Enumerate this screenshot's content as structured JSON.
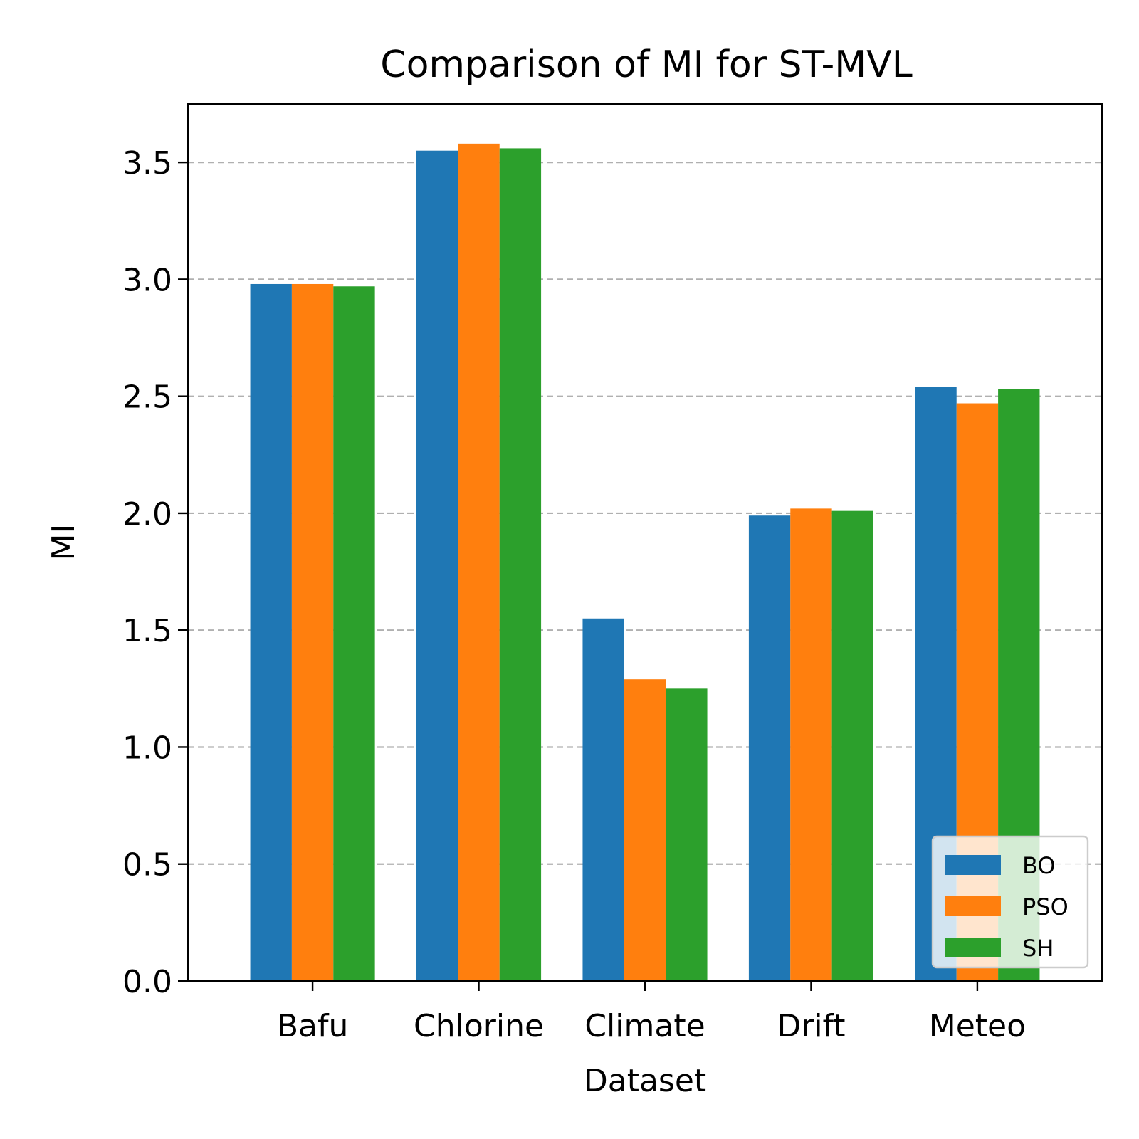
{
  "chart_data": {
    "type": "bar",
    "title": "Comparison of MI for ST-MVL",
    "xlabel": "Dataset",
    "ylabel": "MI",
    "categories": [
      "Bafu",
      "Chlorine",
      "Climate",
      "Drift",
      "Meteo"
    ],
    "series": [
      {
        "name": "BO",
        "color": "#1f77b4",
        "values": [
          2.98,
          3.55,
          1.55,
          1.99,
          2.54
        ]
      },
      {
        "name": "PSO",
        "color": "#ff7f0e",
        "values": [
          2.98,
          3.58,
          1.29,
          2.02,
          2.47
        ]
      },
      {
        "name": "SH",
        "color": "#2ca02c",
        "values": [
          2.97,
          3.56,
          1.25,
          2.01,
          2.53
        ]
      }
    ],
    "ylim": [
      0,
      3.75
    ],
    "yticks": [
      0.0,
      0.5,
      1.0,
      1.5,
      2.0,
      2.5,
      3.0,
      3.5
    ],
    "ytick_labels": [
      "0.0",
      "0.5",
      "1.0",
      "1.5",
      "2.0",
      "2.5",
      "3.0",
      "3.5"
    ],
    "grid": "y-dashed",
    "legend_position": "lower-right"
  }
}
